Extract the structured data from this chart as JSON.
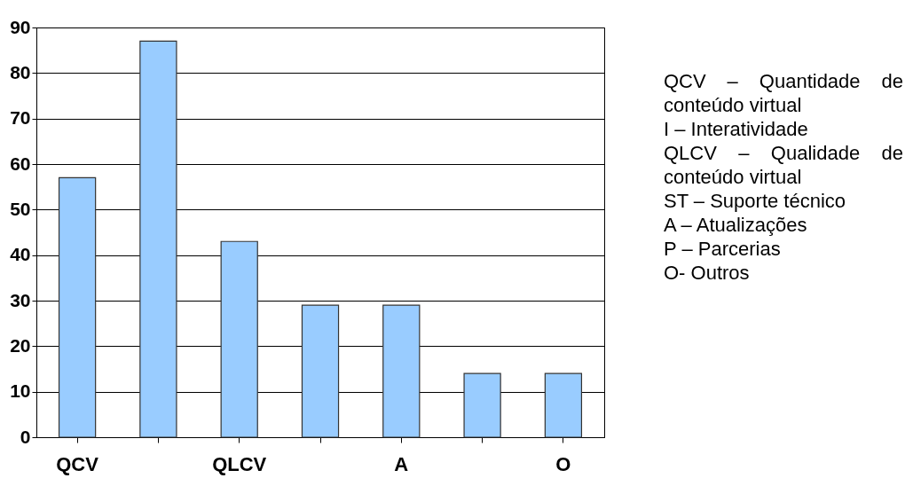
{
  "chart_data": {
    "type": "bar",
    "categories": [
      "QCV",
      null,
      "QLCV",
      null,
      "A",
      null,
      "O"
    ],
    "values": [
      57,
      87,
      43,
      29,
      29,
      14,
      14
    ],
    "color": "#99ccff",
    "ylim": [
      0,
      90
    ],
    "yticks": [
      0,
      10,
      20,
      30,
      40,
      50,
      60,
      70,
      80,
      90
    ],
    "grid": "y",
    "annotations": [
      "QCV – Quantidade de conteúdo virtual",
      "I – Interatividade",
      "QLCV – Qualidade de conteúdo virtual",
      "ST – Suporte técnico",
      "A – Atualizações",
      "P – Parcerias",
      "O- Outros"
    ]
  }
}
